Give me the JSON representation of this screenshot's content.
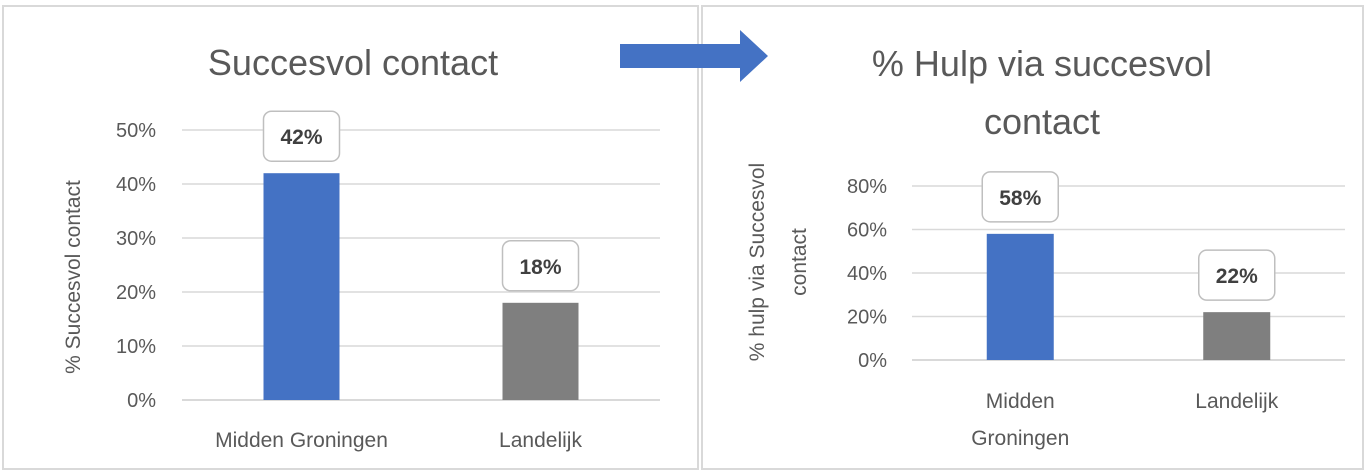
{
  "arrow_color": "#4472c4",
  "chart_data": [
    {
      "type": "bar",
      "title": "Succesvol contact",
      "ylabel": "% Succesvol contact",
      "xlabel": "",
      "categories": [
        "Midden Groningen",
        "Landelijk"
      ],
      "values": [
        42,
        18
      ],
      "data_labels": [
        "42%",
        "18%"
      ],
      "colors": [
        "#4472c4",
        "#7f7f7f"
      ],
      "ylim": [
        0,
        50
      ],
      "yticks": [
        "0%",
        "10%",
        "20%",
        "30%",
        "40%",
        "50%"
      ],
      "grid": true,
      "legend": "none"
    },
    {
      "type": "bar",
      "title_lines": [
        "% Hulp via succesvol",
        "contact"
      ],
      "ylabel_lines": [
        "% hulp via  Succesvol",
        "contact"
      ],
      "xlabel": "",
      "categories": [
        "Midden Groningen",
        "Landelijk"
      ],
      "category_lines": [
        [
          "Midden",
          "Groningen"
        ],
        [
          "Landelijk"
        ]
      ],
      "values": [
        58,
        22
      ],
      "data_labels": [
        "58%",
        "22%"
      ],
      "colors": [
        "#4472c4",
        "#7f7f7f"
      ],
      "ylim": [
        0,
        80
      ],
      "yticks": [
        "0%",
        "20%",
        "40%",
        "60%",
        "80%"
      ],
      "grid": true,
      "legend": "none"
    }
  ]
}
